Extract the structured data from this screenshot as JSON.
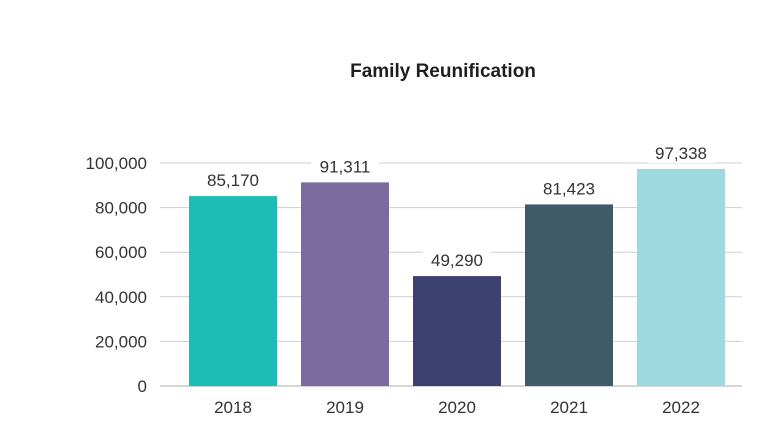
{
  "chart_data": {
    "type": "bar",
    "title": "Family Reunification",
    "categories": [
      "2018",
      "2019",
      "2020",
      "2021",
      "2022"
    ],
    "values": [
      85170,
      91311,
      49290,
      81423,
      97338
    ],
    "value_labels": [
      "85,170",
      "91,311",
      "49,290",
      "81,423",
      "97,338"
    ],
    "bar_colors": [
      "#1dbdb6",
      "#7b6a9e",
      "#3c4170",
      "#3f5b6a",
      "#9dd9de"
    ],
    "yticks": [
      0,
      20000,
      40000,
      60000,
      80000,
      100000
    ],
    "ytick_labels": [
      "0",
      "20,000",
      "40,000",
      "60,000",
      "80,000",
      "100,000"
    ],
    "ylim": [
      0,
      100000
    ],
    "grid": true,
    "legend": "none",
    "xlabel": "",
    "ylabel": ""
  }
}
